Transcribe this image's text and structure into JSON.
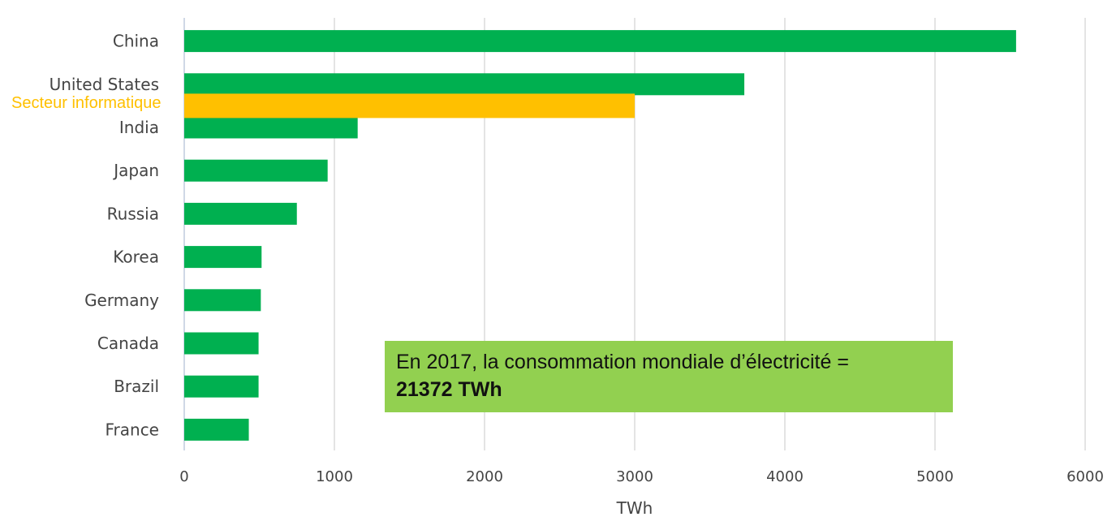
{
  "chart_data": {
    "type": "bar",
    "orientation": "horizontal",
    "categories": [
      "China",
      "United States",
      "India",
      "Japan",
      "Russia",
      "Korea",
      "Germany",
      "Canada",
      "Brazil",
      "France"
    ],
    "values": [
      5540,
      3730,
      1155,
      955,
      750,
      515,
      510,
      495,
      495,
      430
    ],
    "xlabel": "TWh",
    "ylabel": "",
    "xlim": [
      0,
      6000
    ],
    "xticks": [
      0,
      1000,
      2000,
      3000,
      4000,
      5000,
      6000
    ],
    "grid": "vertical",
    "colors": {
      "bar": "#00b050",
      "highlight": "#ffc000",
      "grid": "#e4e4e4",
      "note_bg": "#92d050"
    },
    "highlight": {
      "label": "Secteur informatique",
      "value": 3000,
      "position_between": [
        "United States",
        "India"
      ]
    },
    "annotation": {
      "line1": "En 2017, la consommation mondiale d’électricité =",
      "line2": "21372 TWh"
    }
  }
}
